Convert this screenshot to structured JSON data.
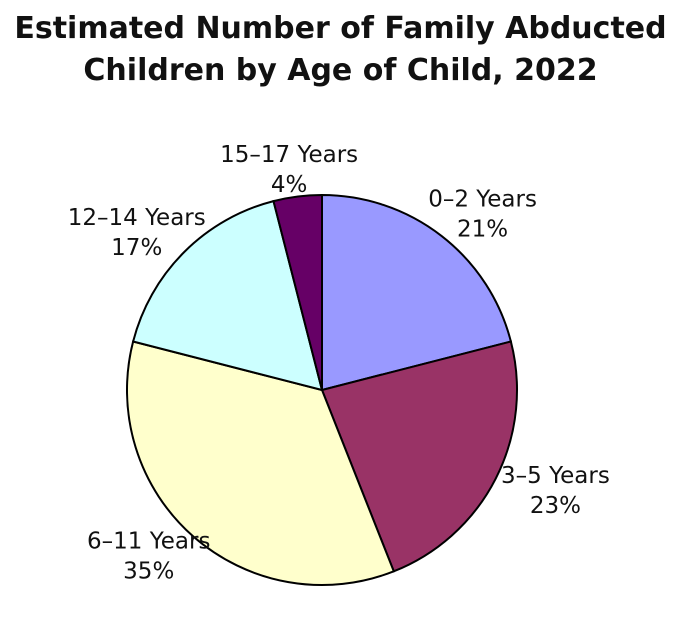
{
  "chart_data": {
    "type": "pie",
    "title": "Estimated Number of Family Abducted Children by Age of Child, 2022",
    "categories": [
      "0–2 Years",
      "3–5 Years",
      "6–11 Years",
      "12–14 Years",
      "15–17 Years"
    ],
    "values": [
      21,
      23,
      35,
      17,
      4
    ],
    "value_labels": [
      "21%",
      "23%",
      "35%",
      "17%",
      "4%"
    ],
    "colors": [
      "#9999ff",
      "#993366",
      "#ffffcc",
      "#ccffff",
      "#660066"
    ]
  }
}
